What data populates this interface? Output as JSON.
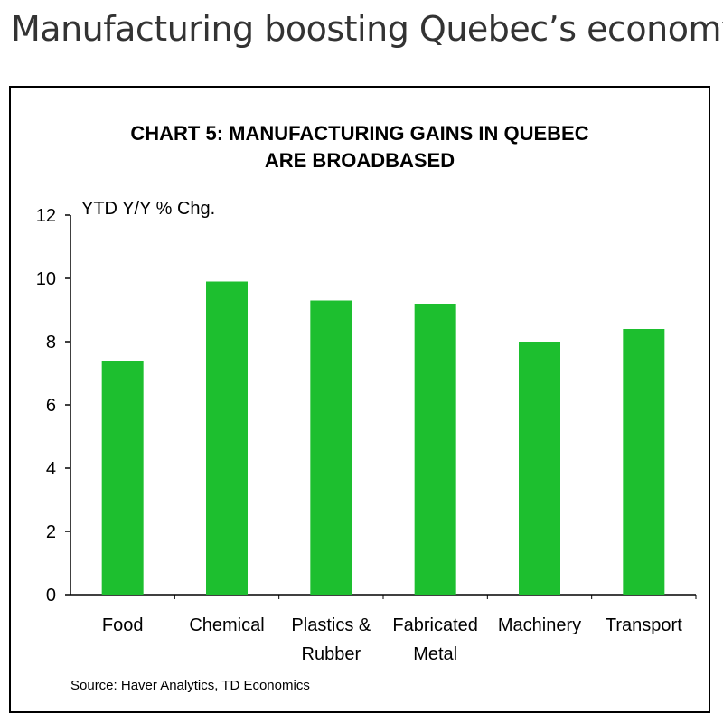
{
  "page": {
    "title": "Manufacturing boosting Quebec’s economy"
  },
  "chart_data": {
    "type": "bar",
    "title_lines": [
      "CHART 5: MANUFACTURING  GAINS  IN QUEBEC",
      "ARE BROADBASED"
    ],
    "ylabel": "YTD Y/Y  % Chg.",
    "ylim": [
      0,
      12
    ],
    "yticks": [
      0,
      2,
      4,
      6,
      8,
      10,
      12
    ],
    "categories": [
      [
        "Food"
      ],
      [
        "Chemical"
      ],
      [
        "Plastics &",
        "Rubber"
      ],
      [
        "Fabricated",
        "Metal"
      ],
      [
        "Machinery"
      ],
      [
        "Transport"
      ]
    ],
    "values": [
      7.4,
      9.9,
      9.3,
      9.2,
      8.0,
      8.4
    ],
    "bar_color": "#1dbf2f",
    "grid": false,
    "source": "Source:  Haver Analytics, TD Economics"
  }
}
